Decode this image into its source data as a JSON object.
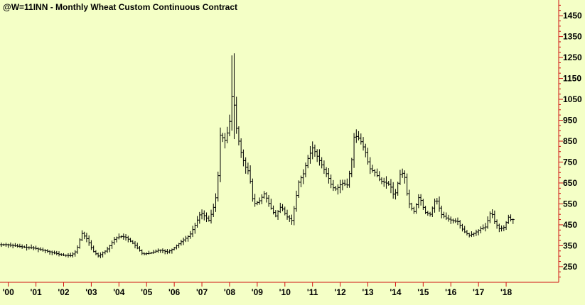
{
  "chart_data": {
    "type": "ohlc-bar",
    "title": "@W=11INN - Monthly  Wheat Custom Continuous Contract",
    "colors": {
      "background": "#f4ffc6",
      "axis": "#d01010",
      "bars": "#000000"
    },
    "y_axis": {
      "side": "right",
      "ylim": [
        175,
        1525
      ],
      "ticks": [
        250,
        350,
        450,
        550,
        650,
        750,
        850,
        950,
        1050,
        1150,
        1250,
        1350,
        1450
      ]
    },
    "x_axis": {
      "range": [
        1999.7,
        2019.9
      ],
      "ticks": [
        {
          "value": 2000,
          "label": "'00"
        },
        {
          "value": 2001,
          "label": "'01"
        },
        {
          "value": 2002,
          "label": "'02"
        },
        {
          "value": 2003,
          "label": "'03"
        },
        {
          "value": 2004,
          "label": "'04"
        },
        {
          "value": 2005,
          "label": "'05"
        },
        {
          "value": 2006,
          "label": "'06"
        },
        {
          "value": 2007,
          "label": "'07"
        },
        {
          "value": 2008,
          "label": "'08"
        },
        {
          "value": 2009,
          "label": "'09"
        },
        {
          "value": 2010,
          "label": "'10"
        },
        {
          "value": 2011,
          "label": "'11"
        },
        {
          "value": 2012,
          "label": "'12"
        },
        {
          "value": 2013,
          "label": "'13"
        },
        {
          "value": 2014,
          "label": "'14"
        },
        {
          "value": 2015,
          "label": "'15"
        },
        {
          "value": 2016,
          "label": "'16"
        },
        {
          "value": 2017,
          "label": "'17"
        },
        {
          "value": 2018,
          "label": "'18"
        }
      ]
    },
    "monthly_close": [
      [
        2000.0,
        355
      ],
      [
        2000.5,
        345
      ],
      [
        2001.0,
        338
      ],
      [
        2001.5,
        322
      ],
      [
        2002.0,
        305
      ],
      [
        2002.3,
        302
      ],
      [
        2002.5,
        325
      ],
      [
        2002.7,
        410
      ],
      [
        2002.9,
        380
      ],
      [
        2003.1,
        325
      ],
      [
        2003.3,
        300
      ],
      [
        2003.6,
        330
      ],
      [
        2003.9,
        385
      ],
      [
        2004.1,
        395
      ],
      [
        2004.3,
        390
      ],
      [
        2004.6,
        355
      ],
      [
        2004.9,
        310
      ],
      [
        2005.2,
        315
      ],
      [
        2005.5,
        330
      ],
      [
        2005.8,
        320
      ],
      [
        2006.0,
        335
      ],
      [
        2006.3,
        370
      ],
      [
        2006.6,
        400
      ],
      [
        2006.8,
        450
      ],
      [
        2007.0,
        510
      ],
      [
        2007.3,
        470
      ],
      [
        2007.5,
        550
      ],
      [
        2007.6,
        620
      ],
      [
        2007.7,
        880
      ],
      [
        2007.9,
        850
      ],
      [
        2008.05,
        950
      ],
      [
        2008.15,
        1100
      ],
      [
        2008.3,
        900
      ],
      [
        2008.45,
        800
      ],
      [
        2008.6,
        730
      ],
      [
        2008.75,
        700
      ],
      [
        2008.9,
        550
      ],
      [
        2009.1,
        560
      ],
      [
        2009.3,
        600
      ],
      [
        2009.5,
        540
      ],
      [
        2009.7,
        490
      ],
      [
        2009.9,
        540
      ],
      [
        2010.1,
        490
      ],
      [
        2010.3,
        470
      ],
      [
        2010.55,
        660
      ],
      [
        2010.7,
        690
      ],
      [
        2010.85,
        760
      ],
      [
        2011.05,
        820
      ],
      [
        2011.2,
        780
      ],
      [
        2011.4,
        730
      ],
      [
        2011.6,
        680
      ],
      [
        2011.75,
        630
      ],
      [
        2011.9,
        620
      ],
      [
        2012.1,
        650
      ],
      [
        2012.3,
        640
      ],
      [
        2012.45,
        750
      ],
      [
        2012.55,
        880
      ],
      [
        2012.75,
        860
      ],
      [
        2012.95,
        800
      ],
      [
        2013.1,
        720
      ],
      [
        2013.3,
        700
      ],
      [
        2013.5,
        660
      ],
      [
        2013.7,
        650
      ],
      [
        2013.85,
        640
      ],
      [
        2014.0,
        580
      ],
      [
        2014.2,
        690
      ],
      [
        2014.35,
        700
      ],
      [
        2014.5,
        560
      ],
      [
        2014.7,
        510
      ],
      [
        2014.9,
        590
      ],
      [
        2015.1,
        510
      ],
      [
        2015.3,
        500
      ],
      [
        2015.5,
        580
      ],
      [
        2015.7,
        500
      ],
      [
        2015.9,
        480
      ],
      [
        2016.1,
        470
      ],
      [
        2016.3,
        465
      ],
      [
        2016.5,
        420
      ],
      [
        2016.7,
        400
      ],
      [
        2016.9,
        410
      ],
      [
        2017.1,
        430
      ],
      [
        2017.3,
        440
      ],
      [
        2017.5,
        520
      ],
      [
        2017.6,
        470
      ],
      [
        2017.8,
        430
      ],
      [
        2018.0,
        440
      ],
      [
        2018.1,
        490
      ],
      [
        2018.2,
        475
      ]
    ]
  }
}
